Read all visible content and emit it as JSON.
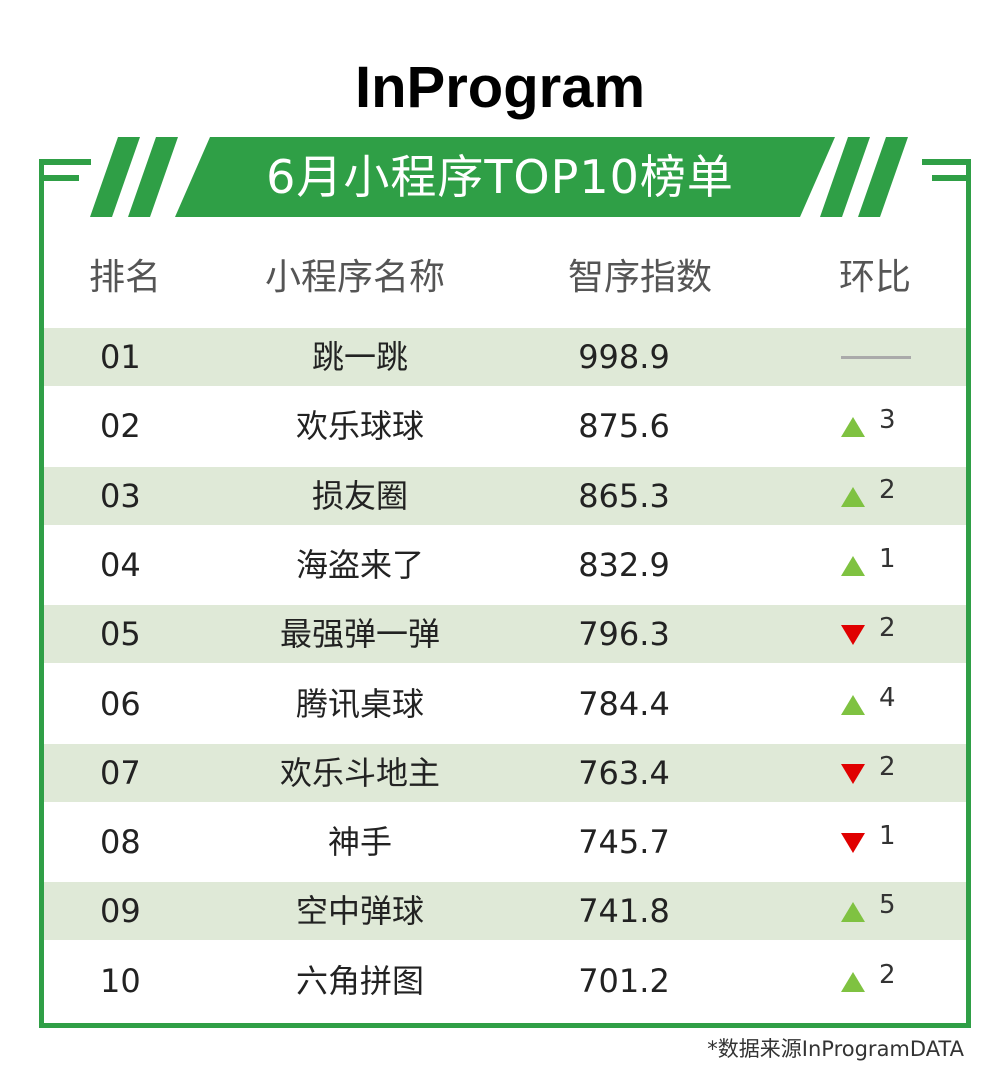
{
  "brand": "InProgram",
  "banner_title": "6月小程序TOP10榜单",
  "headers": {
    "rank": "排名",
    "name": "小程序名称",
    "score": "智序指数",
    "change": "环比"
  },
  "colors": {
    "green": "#2f9f46",
    "row_shade": "#dfe9d7",
    "up": "#7fc241",
    "down": "#e00000",
    "flat": "#aaaaaa"
  },
  "chart_data": {
    "type": "table",
    "columns": [
      "排名",
      "小程序名称",
      "智序指数",
      "环比"
    ],
    "rows": [
      {
        "rank": "01",
        "name": "跳一跳",
        "score": "998.9",
        "trend": "flat",
        "change": ""
      },
      {
        "rank": "02",
        "name": "欢乐球球",
        "score": "875.6",
        "trend": "up",
        "change": "3"
      },
      {
        "rank": "03",
        "name": "损友圈",
        "score": "865.3",
        "trend": "up",
        "change": "2"
      },
      {
        "rank": "04",
        "name": "海盗来了",
        "score": "832.9",
        "trend": "up",
        "change": "1"
      },
      {
        "rank": "05",
        "name": "最强弹一弹",
        "score": "796.3",
        "trend": "down",
        "change": "2"
      },
      {
        "rank": "06",
        "name": "腾讯桌球",
        "score": "784.4",
        "trend": "up",
        "change": "4"
      },
      {
        "rank": "07",
        "name": "欢乐斗地主",
        "score": "763.4",
        "trend": "down",
        "change": "2"
      },
      {
        "rank": "08",
        "name": "神手",
        "score": "745.7",
        "trend": "down",
        "change": "1"
      },
      {
        "rank": "09",
        "name": "空中弹球",
        "score": "741.8",
        "trend": "up",
        "change": "5"
      },
      {
        "rank": "10",
        "name": "六角拼图",
        "score": "701.2",
        "trend": "up",
        "change": "2"
      }
    ]
  },
  "source": "*数据来源InProgramDATA"
}
